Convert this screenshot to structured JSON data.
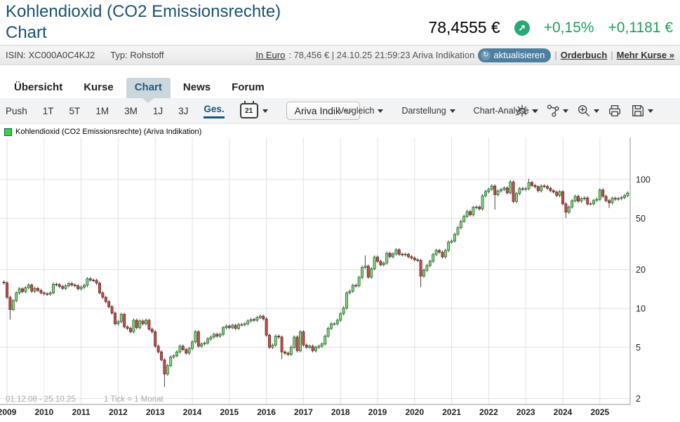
{
  "header": {
    "title_line1": "Kohlendioxid (CO2 Emissionsrechte)",
    "title_line2": "Chart",
    "price": "78,4555 €",
    "trend_icon": "arrow-up-right",
    "change_percent": "+0,15%",
    "change_abs": "+0,1181 €",
    "accent_green": "#1ca05a",
    "title_color": "#1a5270"
  },
  "infobar": {
    "isin": "ISIN: XC000A0C4KJ2",
    "type": "Typ: Rohstoff",
    "currency_link": "In Euro",
    "quote_text": ": 78,456 € | 24.10.25 21:59:23 Ariva Indikation",
    "refresh_glyph": "↻",
    "refresh_button": "aktualisieren",
    "orderbuch_link": "Orderbuch",
    "separator": "|",
    "mehr_kurse_link": "Mehr Kurse »"
  },
  "tabs": {
    "items": [
      "Übersicht",
      "Kurse",
      "Chart",
      "News",
      "Forum"
    ],
    "active": "Chart"
  },
  "toolbar": {
    "ranges": [
      "Push",
      "1T",
      "5T",
      "1M",
      "3M",
      "1J",
      "3J",
      "Ges."
    ],
    "active_range": "Ges.",
    "calendar_day": "21",
    "source_button": "Ariva Indik",
    "menus": [
      "Vergleich",
      "Darstellung",
      "Chart-Analyse"
    ],
    "icons": [
      "settings-icon",
      "share-icon",
      "zoom-in-icon",
      "print-icon",
      "save-icon"
    ]
  },
  "chart_data": {
    "type": "candlestick",
    "legend": "Kohlendioxid (CO2 Emissionsrechte) (Ariva Indikation)",
    "scale": "logarithmic",
    "unit": "EUR",
    "period_label": "01.12.08 - 25.10.25",
    "tick_label": "1 Tick = 1 Monat",
    "start_month": "2008-12",
    "months_per_candle": 1,
    "y_ticks": [
      100,
      50,
      20,
      10,
      5,
      2
    ],
    "x_tick_years": [
      2009,
      2010,
      2011,
      2012,
      2013,
      2014,
      2015,
      2016,
      2017,
      2018,
      2019,
      2020,
      2021,
      2022,
      2023,
      2024,
      2025
    ],
    "first_open": 16.0,
    "closes": [
      15.8,
      12.2,
      9.8,
      11.5,
      13.2,
      14.2,
      13.5,
      14.5,
      15.2,
      13.6,
      14.3,
      13.8,
      13.2,
      13.0,
      12.9,
      13.2,
      15.4,
      15.3,
      14.8,
      14.3,
      15.0,
      15.6,
      15.2,
      15.0,
      14.2,
      14.6,
      15.1,
      17.0,
      16.6,
      16.5,
      15.7,
      13.2,
      12.2,
      11.3,
      10.3,
      9.2,
      7.6,
      7.9,
      9.0,
      7.2,
      7.0,
      6.6,
      8.1,
      7.1,
      8.0,
      7.6,
      8.1,
      6.9,
      6.6,
      5.1,
      4.6,
      4.0,
      3.1,
      3.6,
      4.2,
      4.3,
      4.6,
      5.1,
      4.8,
      4.5,
      4.9,
      5.5,
      6.6,
      5.1,
      5.3,
      5.4,
      5.8,
      6.0,
      6.3,
      6.1,
      6.3,
      7.1,
      7.3,
      7.1,
      7.4,
      7.0,
      7.5,
      7.5,
      7.6,
      8.0,
      8.2,
      8.1,
      8.5,
      8.7,
      8.3,
      6.2,
      5.0,
      5.2,
      6.1,
      6.0,
      4.6,
      4.5,
      4.4,
      5.0,
      6.0,
      4.7,
      6.6,
      5.2,
      5.0,
      5.1,
      4.7,
      5.0,
      5.1,
      5.3,
      6.1,
      7.0,
      7.6,
      7.6,
      8.1,
      9.1,
      10.1,
      13.2,
      13.6,
      15.1,
      15.0,
      17.4,
      20.8,
      21.3,
      17.5,
      20.3,
      25.0,
      23.2,
      21.8,
      22.5,
      26.8,
      25.2,
      26.5,
      28.5,
      26.3,
      26.0,
      26.3,
      25.2,
      24.6,
      23.8,
      23.6,
      17.8,
      19.8,
      21.5,
      23.2,
      26.2,
      28.2,
      27.3,
      25.1,
      28.2,
      32.7,
      33.3,
      37.6,
      42.3,
      47.3,
      51.8,
      56.4,
      53.2,
      60.8,
      61.2,
      59.1,
      74.8,
      80.6,
      83.9,
      89.0,
      76.2,
      81.5,
      83.6,
      86.0,
      78.8,
      95.6,
      67.5,
      77.8,
      84.9,
      83.9,
      84.8,
      94.8,
      89.8,
      87.8,
      81.7,
      89.2,
      88.3,
      85.5,
      81.8,
      79.9,
      75.1,
      80.4,
      64.7,
      55.7,
      61.2,
      68.4,
      74.0,
      67.9,
      70.9,
      71.9,
      64.6,
      64.9,
      68.7,
      70.2,
      83.0,
      74.0,
      68.5,
      66.0,
      71.5,
      70.4,
      71.2,
      72.5,
      74.9,
      78.46
    ],
    "wick_overrides": {
      "2": {
        "low": 8.2
      },
      "27": {
        "high": 17.5
      },
      "52": {
        "low": 2.46
      },
      "90": {
        "low": 4.05
      },
      "117": {
        "high": 25.8
      },
      "135": {
        "low": 14.6
      },
      "159": {
        "low": 58.3
      },
      "164": {
        "high": 99.2
      },
      "170": {
        "high": 101.2
      },
      "182": {
        "low": 50.2
      },
      "193": {
        "high": 85.2
      },
      "196": {
        "low": 60.1
      }
    },
    "colors": {
      "up_fill": "#85d085",
      "up_stroke": "#1d5e1d",
      "down_fill": "#c0504d",
      "down_stroke": "#5e1f1d",
      "wick": "#333333",
      "grid": "#e1e1e1",
      "axis": "#9a9a9a",
      "label": "#222222",
      "muted": "#aaaaaa"
    }
  }
}
